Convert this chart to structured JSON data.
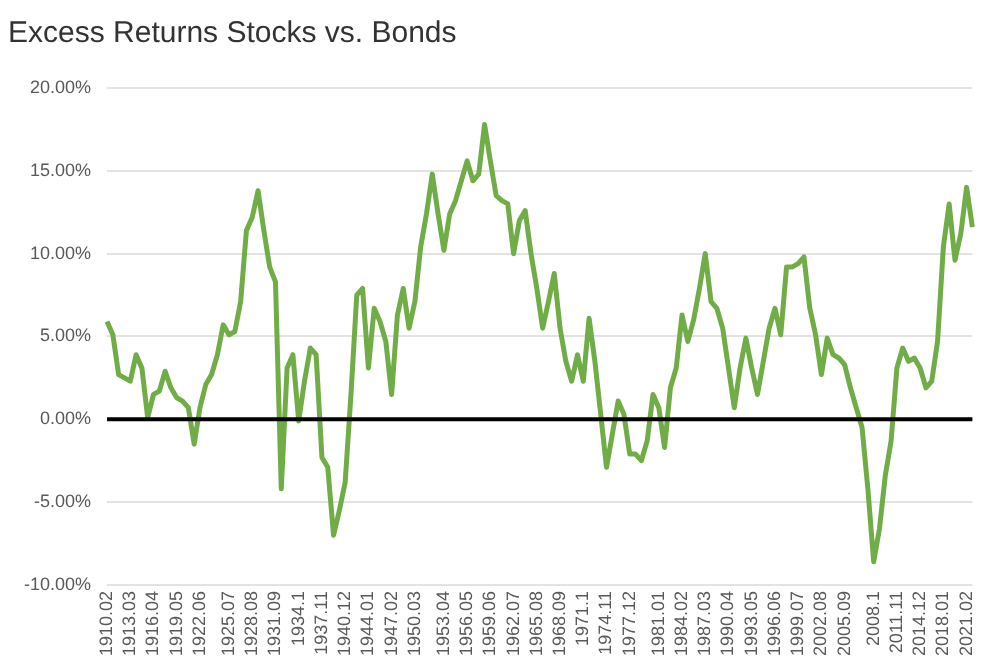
{
  "chart_data": {
    "type": "line",
    "title": "Excess Returns Stocks vs. Bonds",
    "categories": [
      "1910.02",
      null,
      null,
      null,
      "1913.03",
      null,
      null,
      null,
      "1916.04",
      null,
      null,
      null,
      "1919.05",
      null,
      null,
      null,
      "1922.06",
      null,
      null,
      null,
      null,
      "1925.07",
      null,
      null,
      null,
      "1928.08",
      null,
      null,
      null,
      "1931.09",
      null,
      null,
      null,
      "1934.1",
      null,
      null,
      null,
      "1937.11",
      null,
      null,
      null,
      "1940.12",
      null,
      null,
      null,
      "1944.01",
      null,
      null,
      null,
      "1947.02",
      null,
      null,
      null,
      "1950.03",
      null,
      null,
      null,
      null,
      "1953.04",
      null,
      null,
      null,
      "1956.05",
      null,
      null,
      null,
      "1959.06",
      null,
      null,
      null,
      "1962.07",
      null,
      null,
      null,
      "1965.08",
      null,
      null,
      null,
      "1968.09",
      null,
      null,
      null,
      "1971.1",
      null,
      null,
      null,
      "1974.11",
      null,
      null,
      null,
      "1977.12",
      null,
      null,
      null,
      null,
      "1981.01",
      null,
      null,
      null,
      "1984.02",
      null,
      null,
      null,
      "1987.03",
      null,
      null,
      null,
      "1990.04",
      null,
      null,
      null,
      "1993.05",
      null,
      null,
      null,
      "1996.06",
      null,
      null,
      null,
      "1999.07",
      null,
      null,
      null,
      "2002.08",
      null,
      null,
      null,
      "2005.09",
      null,
      null,
      null,
      null,
      "2008.1",
      null,
      null,
      null,
      "2011.11",
      null,
      null,
      null,
      "2014.12",
      null,
      null,
      null,
      "2018.01",
      null,
      null,
      null,
      "2021.02",
      null
    ],
    "series": [
      {
        "color": "#70ad47",
        "values": [
          5.9,
          5.1,
          2.7,
          2.5,
          2.3,
          3.9,
          3.1,
          0.1,
          1.5,
          1.7,
          2.9,
          1.9,
          1.3,
          1.1,
          0.7,
          -1.5,
          0.7,
          2.1,
          2.7,
          3.9,
          5.7,
          5.1,
          5.3,
          7.1,
          11.4,
          12.2,
          13.8,
          11.4,
          9.2,
          8.3,
          -4.2,
          3.1,
          3.9,
          -0.1,
          2.3,
          4.3,
          3.9,
          -2.3,
          -2.9,
          -7.0,
          -5.5,
          -3.8,
          1.5,
          7.5,
          7.9,
          3.1,
          6.7,
          5.9,
          4.7,
          1.5,
          6.3,
          7.9,
          5.5,
          7.1,
          10.4,
          12.4,
          14.8,
          12.4,
          10.2,
          12.4,
          13.2,
          14.4,
          15.6,
          14.4,
          14.8,
          17.8,
          15.6,
          13.5,
          13.2,
          13.0,
          10.0,
          12.0,
          12.6,
          10.0,
          7.9,
          5.5,
          7.1,
          8.8,
          5.5,
          3.5,
          2.3,
          3.9,
          2.3,
          6.1,
          3.5,
          0.3,
          -2.9,
          -0.9,
          1.1,
          0.3,
          -2.1,
          -2.1,
          -2.5,
          -1.3,
          1.5,
          0.7,
          -1.7,
          1.9,
          3.1,
          6.3,
          4.7,
          6.0,
          7.9,
          10.0,
          7.1,
          6.7,
          5.5,
          3.1,
          0.7,
          3.1,
          4.9,
          3.1,
          1.5,
          3.5,
          5.5,
          6.7,
          5.1,
          9.2,
          9.2,
          9.4,
          9.8,
          6.7,
          5.1,
          2.7,
          4.9,
          3.9,
          3.7,
          3.3,
          1.9,
          0.7,
          -0.5,
          -4.2,
          -8.6,
          -6.6,
          -3.4,
          -1.3,
          3.1,
          4.3,
          3.5,
          3.7,
          3.1,
          1.9,
          2.3,
          4.7,
          10.4,
          13.0,
          9.6,
          11.2,
          14.0,
          11.6
        ]
      }
    ],
    "ylim": [
      -10,
      20
    ],
    "yticks": [
      {
        "value": -10,
        "label": "-10.00%"
      },
      {
        "value": -5,
        "label": "-5.00%"
      },
      {
        "value": 0,
        "label": "0.00%"
      },
      {
        "value": 5,
        "label": "5.00%"
      },
      {
        "value": 10,
        "label": "10.00%"
      },
      {
        "value": 15,
        "label": "15.00%"
      },
      {
        "value": 20,
        "label": "20.00%"
      }
    ],
    "ref_lines": [
      {
        "axis": "y",
        "value": 0,
        "color": "#000000"
      }
    ],
    "grid": "y",
    "legend": false,
    "marker": "none",
    "line_style": "solid"
  }
}
